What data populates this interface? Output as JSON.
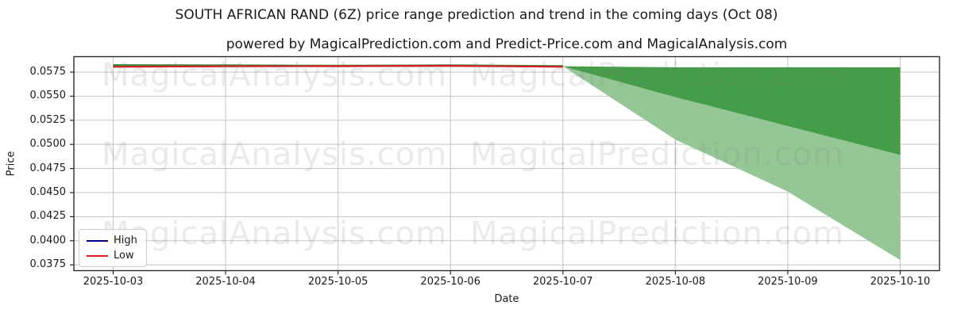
{
  "title": "SOUTH AFRICAN RAND (6Z) price range prediction and trend in the coming days (Oct 08)",
  "subtitle": "powered by MagicalPrediction.com and Predict-Price.com and MagicalAnalysis.com",
  "watermarks": {
    "left_text": "MagicalAnalysis.com",
    "right_text": "MagicalPrediction.com"
  },
  "legend": {
    "items": [
      {
        "label": "High",
        "color": "#00008b"
      },
      {
        "label": "Low",
        "color": "#e01a1a"
      }
    ]
  },
  "axes": {
    "x_label": "Date",
    "y_label": "Price",
    "x_ticks": [
      "2025-10-03",
      "2025-10-04",
      "2025-10-05",
      "2025-10-06",
      "2025-10-07",
      "2025-10-08",
      "2025-10-09",
      "2025-10-10"
    ],
    "y_ticks": [
      0.0575,
      0.055,
      0.0525,
      0.05,
      0.0475,
      0.045,
      0.0425,
      0.04,
      0.0375
    ],
    "y_min": 0.0369,
    "y_max": 0.0591,
    "grid": "on",
    "legend_position": "lower left"
  },
  "chart_data": {
    "type": "line",
    "x": [
      "2025-10-03",
      "2025-10-04",
      "2025-10-05",
      "2025-10-06",
      "2025-10-07",
      "2025-10-08",
      "2025-10-09",
      "2025-10-10"
    ],
    "series": [
      {
        "name": "High (history)",
        "color": "#3a8e3e",
        "x_index": [
          0,
          1,
          2,
          3,
          4
        ],
        "values": [
          0.0582,
          0.05818,
          0.05814,
          0.05818,
          0.0581
        ]
      },
      {
        "name": "Low (history)",
        "color": "#d41f26",
        "x_index": [
          0,
          1,
          2,
          3,
          4
        ],
        "values": [
          0.05805,
          0.0581,
          0.05812,
          0.05815,
          0.05805
        ]
      }
    ],
    "prediction_fan": {
      "x_index": [
        4,
        5,
        6,
        7
      ],
      "top": [
        0.0581,
        0.058,
        0.058,
        0.058
      ],
      "mid": [
        0.0581,
        0.0549,
        0.0519,
        0.0489
      ],
      "bottom": [
        0.0581,
        0.0505,
        0.0451,
        0.038
      ],
      "inner_color": "#459c49",
      "outer_color": "#95c796"
    },
    "title": "SOUTH AFRICAN RAND (6Z) price range prediction and trend in the coming days (Oct 08)",
    "xlabel": "Date",
    "ylabel": "Price",
    "ylim": [
      0.0369,
      0.0591
    ]
  },
  "style_colors": {
    "grid": "#c3c3c3",
    "spine": "#2a2a2a",
    "tick": "#2a2a2a"
  }
}
